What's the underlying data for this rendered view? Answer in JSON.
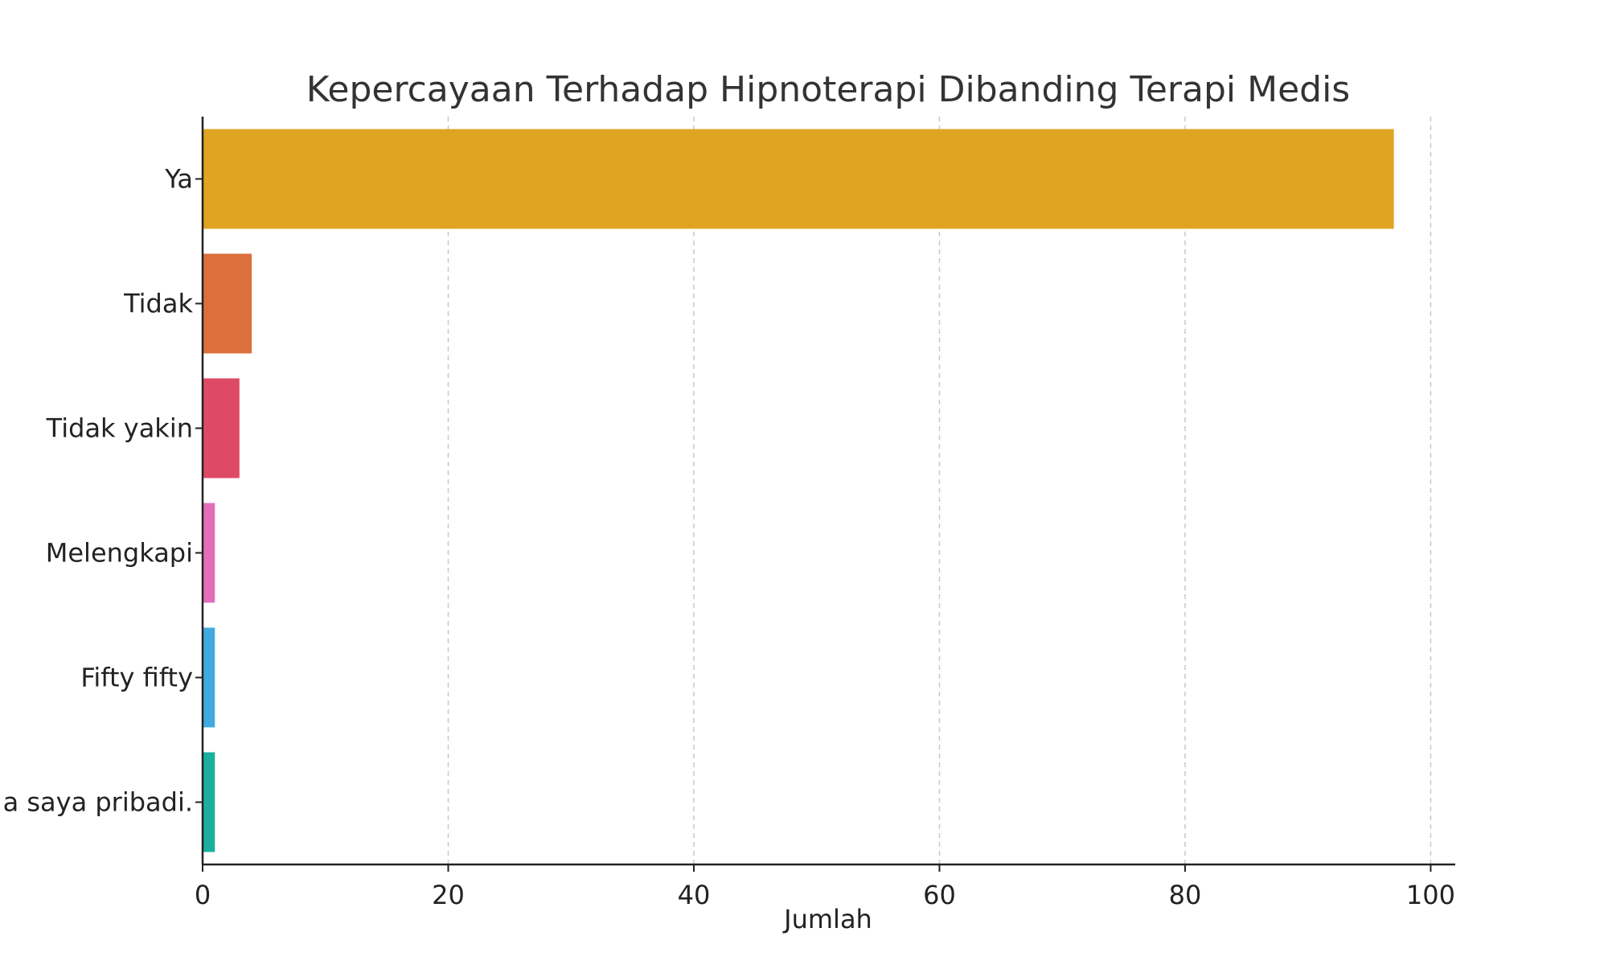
{
  "chart_data": {
    "type": "bar",
    "orientation": "horizontal",
    "title": "Kepercayaan Terhadap Hipnoterapi Dibanding Terapi Medis",
    "xlabel": "Jumlah",
    "ylabel": "",
    "categories": [
      "Ya",
      "Tidak",
      "Tidak yakin",
      "Melengkapi",
      "Fifty fifty",
      "a saya pribadi."
    ],
    "values": [
      97,
      4,
      3,
      1,
      1,
      1
    ],
    "colors": [
      "#E0A423",
      "#DB703C",
      "#DE4A66",
      "#E36EB9",
      "#41ABE0",
      "#1AAF9F"
    ],
    "xlim": [
      0,
      102
    ],
    "xticks": [
      0,
      20,
      40,
      60,
      80,
      100
    ],
    "grid": "vertical dashed",
    "legend": "none"
  }
}
